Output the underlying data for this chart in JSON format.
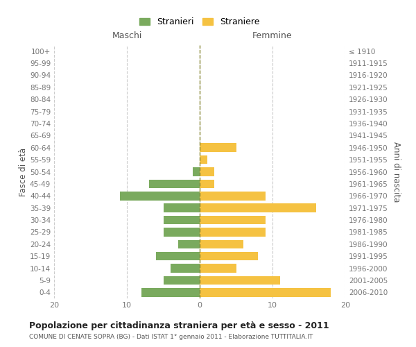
{
  "age_groups": [
    "0-4",
    "5-9",
    "10-14",
    "15-19",
    "20-24",
    "25-29",
    "30-34",
    "35-39",
    "40-44",
    "45-49",
    "50-54",
    "55-59",
    "60-64",
    "65-69",
    "70-74",
    "75-79",
    "80-84",
    "85-89",
    "90-94",
    "95-99",
    "100+"
  ],
  "birth_years": [
    "2006-2010",
    "2001-2005",
    "1996-2000",
    "1991-1995",
    "1986-1990",
    "1981-1985",
    "1976-1980",
    "1971-1975",
    "1966-1970",
    "1961-1965",
    "1956-1960",
    "1951-1955",
    "1946-1950",
    "1941-1945",
    "1936-1940",
    "1931-1935",
    "1926-1930",
    "1921-1925",
    "1916-1920",
    "1911-1915",
    "≤ 1910"
  ],
  "maschi": [
    8,
    5,
    4,
    6,
    3,
    5,
    5,
    5,
    11,
    7,
    1,
    0,
    0,
    0,
    0,
    0,
    0,
    0,
    0,
    0,
    0
  ],
  "femmine": [
    18,
    11,
    5,
    8,
    6,
    9,
    9,
    16,
    9,
    2,
    2,
    1,
    5,
    0,
    0,
    0,
    0,
    0,
    0,
    0,
    0
  ],
  "color_maschi": "#7aaa5e",
  "color_femmine": "#f5c242",
  "title": "Popolazione per cittadinanza straniera per età e sesso - 2011",
  "subtitle": "COMUNE DI CENATE SOPRA (BG) - Dati ISTAT 1° gennaio 2011 - Elaborazione TUTTITALIA.IT",
  "xlabel_left": "Maschi",
  "xlabel_right": "Femmine",
  "ylabel_left": "Fasce di età",
  "ylabel_right": "Anni di nascita",
  "xlim": 20,
  "legend_maschi": "Stranieri",
  "legend_femmine": "Straniere",
  "background_color": "#ffffff",
  "grid_color": "#cccccc"
}
